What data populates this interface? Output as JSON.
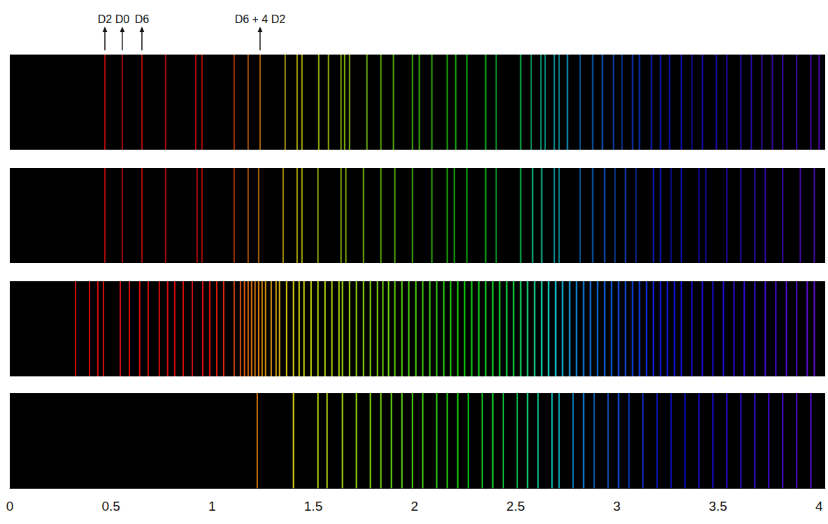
{
  "chart_data": {
    "type": "spectrum",
    "xlim": [
      0,
      4.03
    ],
    "xticks": [
      0,
      0.5,
      1,
      1.5,
      2,
      2.5,
      3,
      3.5,
      4
    ],
    "tick_labels": "x",
    "annotations": [
      {
        "label": "D2",
        "x": 0.47
      },
      {
        "label": "D0",
        "x": 0.556
      },
      {
        "label": "D6",
        "x": 0.653
      },
      {
        "label": "D6 + 4 D2",
        "x": 1.237
      }
    ],
    "series": [
      {
        "values": [
          0.47,
          0.556,
          0.653,
          0.77,
          0.919,
          0.95,
          1.109,
          1.178,
          1.237,
          1.361,
          1.42,
          1.444,
          1.527,
          1.575,
          1.637,
          1.655,
          1.679,
          1.765,
          1.834,
          1.896,
          1.99,
          2.024,
          2.086,
          2.162,
          2.204,
          2.259,
          2.352,
          2.404,
          2.525,
          2.577,
          2.625,
          2.646,
          2.691,
          2.715,
          2.756,
          2.819,
          2.881,
          2.929,
          2.984,
          3.026,
          3.078,
          3.112,
          3.171,
          3.216,
          3.261,
          3.319,
          3.371,
          3.423,
          3.492,
          3.544,
          3.613,
          3.665,
          3.717,
          3.769,
          3.82,
          3.889,
          3.959,
          4.0
        ]
      },
      {
        "values": [
          0.47,
          0.556,
          0.653,
          0.77,
          0.926,
          0.95,
          1.109,
          1.178,
          1.23,
          1.351,
          1.42,
          1.444,
          1.523,
          1.637,
          1.661,
          1.748,
          1.834,
          1.903,
          1.99,
          2.086,
          2.162,
          2.197,
          2.259,
          2.352,
          2.404,
          2.525,
          2.584,
          2.629,
          2.691,
          2.715,
          2.819,
          2.881,
          2.94,
          2.991,
          3.043,
          3.095,
          3.181,
          3.216,
          3.268,
          3.319,
          3.406,
          3.44,
          3.544,
          3.613,
          3.682,
          3.734,
          3.82,
          3.907,
          3.976
        ]
      },
      {
        "values": [
          0.325,
          0.394,
          0.435,
          0.463,
          0.546,
          0.591,
          0.642,
          0.684,
          0.739,
          0.78,
          0.815,
          0.857,
          0.902,
          0.954,
          0.988,
          1.023,
          1.057,
          1.109,
          1.14,
          1.16,
          1.178,
          1.195,
          1.212,
          1.23,
          1.247,
          1.264,
          1.292,
          1.316,
          1.333,
          1.368,
          1.402,
          1.43,
          1.454,
          1.489,
          1.523,
          1.558,
          1.592,
          1.627,
          1.644,
          1.679,
          1.713,
          1.748,
          1.782,
          1.817,
          1.844,
          1.872,
          1.903,
          1.938,
          1.972,
          2.007,
          2.041,
          2.076,
          2.11,
          2.145,
          2.179,
          2.214,
          2.248,
          2.283,
          2.318,
          2.352,
          2.387,
          2.421,
          2.456,
          2.49,
          2.525,
          2.559,
          2.594,
          2.629,
          2.663,
          2.698,
          2.732,
          2.767,
          2.801,
          2.836,
          2.87,
          2.905,
          2.94,
          2.974,
          3.009,
          3.043,
          3.078,
          3.112,
          3.147,
          3.181,
          3.216,
          3.25,
          3.285,
          3.319,
          3.371,
          3.423,
          3.475,
          3.527,
          3.579,
          3.63,
          3.682,
          3.734,
          3.786,
          3.838,
          3.889,
          3.941,
          3.976
        ]
      },
      {
        "values": [
          1.223,
          1.402,
          1.523,
          1.568,
          1.644,
          1.713,
          1.782,
          1.834,
          1.886,
          1.938,
          1.99,
          2.041,
          2.11,
          2.162,
          2.214,
          2.266,
          2.335,
          2.387,
          2.439,
          2.508,
          2.559,
          2.611,
          2.68,
          2.715,
          2.784,
          2.836,
          2.888,
          2.957,
          3.009,
          3.06,
          3.129,
          3.199,
          3.268,
          3.337,
          3.406,
          3.475,
          3.544,
          3.613,
          3.682,
          3.751,
          3.82,
          3.889,
          3.959
        ]
      }
    ]
  }
}
